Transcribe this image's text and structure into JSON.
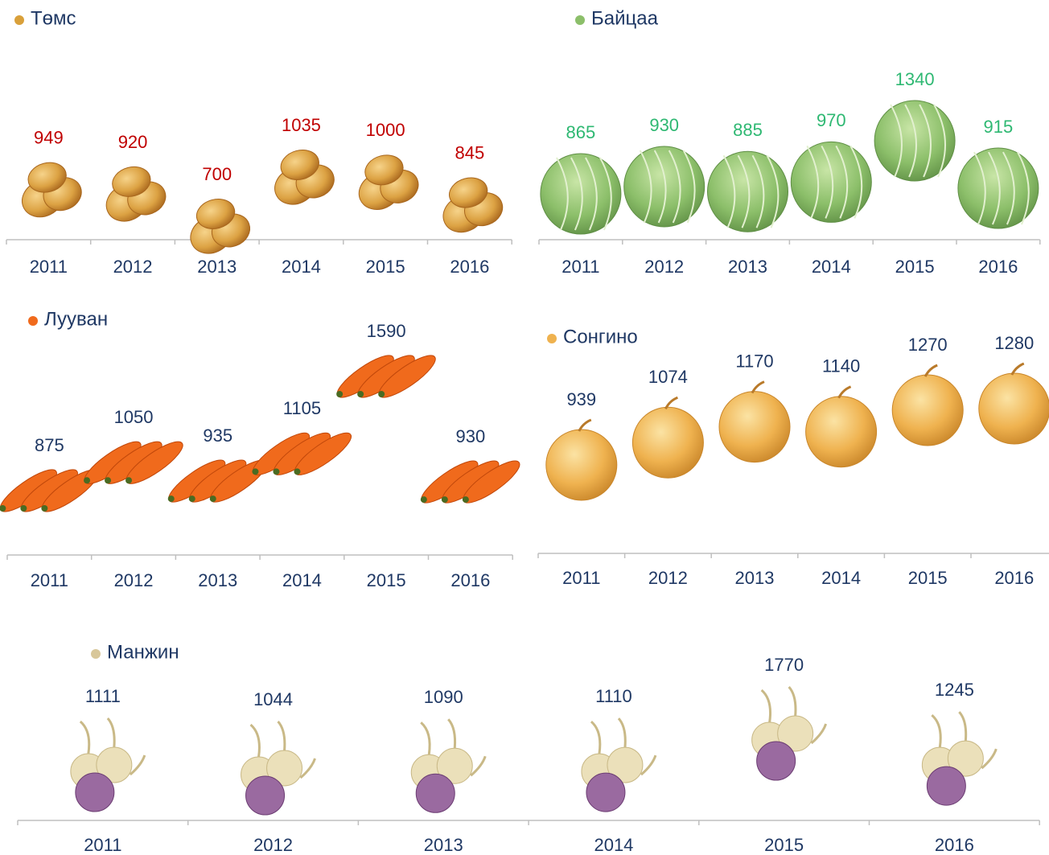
{
  "chart_data": [
    {
      "type": "pictograph",
      "title": "Төмс",
      "categories": [
        "2011",
        "2012",
        "2013",
        "2014",
        "2015",
        "2016"
      ],
      "values": [
        949,
        920,
        700,
        1035,
        1000,
        845
      ],
      "color": "#c00000"
    },
    {
      "type": "pictograph",
      "title": "Байцаа",
      "categories": [
        "2011",
        "2012",
        "2013",
        "2014",
        "2015",
        "2016"
      ],
      "values": [
        865,
        930,
        885,
        970,
        1340,
        915
      ],
      "color": "#2eb872"
    },
    {
      "type": "pictograph",
      "title": "Лууван",
      "categories": [
        "2011",
        "2012",
        "2013",
        "2014",
        "2015",
        "2016"
      ],
      "values": [
        875,
        1050,
        935,
        1105,
        1590,
        930
      ],
      "color": "#1f3864"
    },
    {
      "type": "pictograph",
      "title": "Сонгино",
      "categories": [
        "2011",
        "2012",
        "2013",
        "2014",
        "2015",
        "2016"
      ],
      "values": [
        939,
        1074,
        1170,
        1140,
        1270,
        1280
      ],
      "color": "#1f3864"
    },
    {
      "type": "pictograph",
      "title": "Манжин",
      "categories": [
        "2011",
        "2012",
        "2013",
        "2014",
        "2015",
        "2016"
      ],
      "values": [
        1111,
        1044,
        1090,
        1110,
        1770,
        1245
      ],
      "color": "#1f3864"
    }
  ]
}
